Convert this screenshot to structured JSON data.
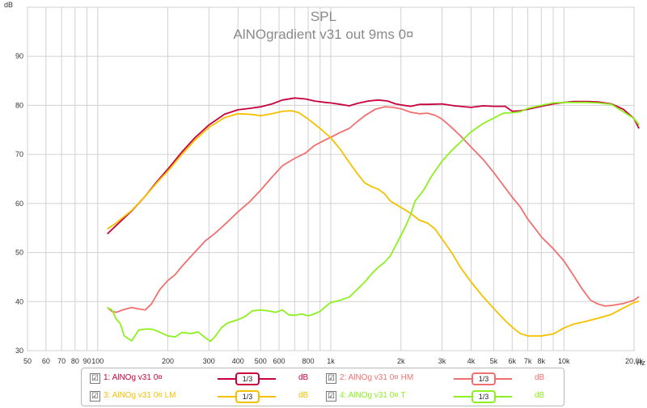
{
  "chart_data": {
    "type": "line",
    "title": "SPL",
    "subtitle": "AlNOgradient v31 out 9ms 0¤",
    "ylabel": "dB",
    "xlabel": "Hz",
    "x_scale": "log",
    "xlim": [
      50,
      20000
    ],
    "ylim": [
      30,
      100
    ],
    "grid": true,
    "y_ticks": [
      30,
      40,
      50,
      60,
      70,
      80,
      90
    ],
    "x_ticks": [
      {
        "v": 50,
        "label": "50"
      },
      {
        "v": 60,
        "label": "60"
      },
      {
        "v": 70,
        "label": "70"
      },
      {
        "v": 80,
        "label": "80"
      },
      {
        "v": 90,
        "label": "90"
      },
      {
        "v": 100,
        "label": "100"
      },
      {
        "v": 200,
        "label": "200"
      },
      {
        "v": 300,
        "label": "300"
      },
      {
        "v": 400,
        "label": "400"
      },
      {
        "v": 500,
        "label": "500"
      },
      {
        "v": 600,
        "label": "600"
      },
      {
        "v": 800,
        "label": "800"
      },
      {
        "v": 1000,
        "label": "1k"
      },
      {
        "v": 2000,
        "label": "2k"
      },
      {
        "v": 3000,
        "label": "3k"
      },
      {
        "v": 4000,
        "label": "4k"
      },
      {
        "v": 5000,
        "label": "5k"
      },
      {
        "v": 6000,
        "label": "6k"
      },
      {
        "v": 7000,
        "label": "7k"
      },
      {
        "v": 8000,
        "label": "8k"
      },
      {
        "v": 10000,
        "label": "10k"
      },
      {
        "v": 20000,
        "label": "20,0k"
      }
    ],
    "minor_x_grid": [
      700,
      900,
      9000
    ],
    "series": [
      {
        "name": "1: AlNOg v31 0¤",
        "color": "#c8003c",
        "points": [
          [
            110,
            53.8
          ],
          [
            120,
            55.5
          ],
          [
            140,
            58.5
          ],
          [
            160,
            61.5
          ],
          [
            180,
            64.5
          ],
          [
            200,
            67
          ],
          [
            230,
            70.5
          ],
          [
            260,
            73.3
          ],
          [
            300,
            76
          ],
          [
            350,
            78.2
          ],
          [
            400,
            79.1
          ],
          [
            450,
            79.4
          ],
          [
            500,
            79.7
          ],
          [
            560,
            80.3
          ],
          [
            620,
            81.1
          ],
          [
            700,
            81.5
          ],
          [
            780,
            81.3
          ],
          [
            850,
            80.9
          ],
          [
            950,
            80.6
          ],
          [
            1000,
            80.5
          ],
          [
            1100,
            80.2
          ],
          [
            1200,
            79.9
          ],
          [
            1300,
            80.4
          ],
          [
            1450,
            80.9
          ],
          [
            1600,
            81.1
          ],
          [
            1750,
            80.9
          ],
          [
            1900,
            80.3
          ],
          [
            2000,
            80.1
          ],
          [
            2200,
            79.8
          ],
          [
            2400,
            80.2
          ],
          [
            2600,
            80.2
          ],
          [
            3000,
            80.3
          ],
          [
            3400,
            79.9
          ],
          [
            4000,
            79.6
          ],
          [
            4500,
            79.9
          ],
          [
            5000,
            79.8
          ],
          [
            5600,
            79.8
          ],
          [
            6000,
            78.8
          ],
          [
            6500,
            78.9
          ],
          [
            7000,
            79.2
          ],
          [
            8000,
            79.8
          ],
          [
            9000,
            80.3
          ],
          [
            10000,
            80.6
          ],
          [
            11000,
            80.8
          ],
          [
            12500,
            80.8
          ],
          [
            14000,
            80.7
          ],
          [
            16000,
            80.3
          ],
          [
            18000,
            79.2
          ],
          [
            20000,
            77.3
          ],
          [
            21000,
            75.3
          ]
        ]
      },
      {
        "name": "2: AlNOg v31 0¤ HM",
        "color": "#f07070",
        "points": [
          [
            110,
            38.8
          ],
          [
            115,
            38
          ],
          [
            120,
            37.8
          ],
          [
            130,
            38.4
          ],
          [
            140,
            38.8
          ],
          [
            150,
            38.5
          ],
          [
            160,
            38.3
          ],
          [
            170,
            39.5
          ],
          [
            185,
            42.5
          ],
          [
            200,
            44.3
          ],
          [
            215,
            45.5
          ],
          [
            230,
            47.2
          ],
          [
            260,
            50
          ],
          [
            290,
            52.4
          ],
          [
            320,
            54
          ],
          [
            360,
            56.2
          ],
          [
            400,
            58.3
          ],
          [
            450,
            60.4
          ],
          [
            500,
            62.7
          ],
          [
            560,
            65.4
          ],
          [
            620,
            67.7
          ],
          [
            700,
            69.2
          ],
          [
            780,
            70.3
          ],
          [
            850,
            71.8
          ],
          [
            950,
            73
          ],
          [
            1000,
            73.5
          ],
          [
            1100,
            74.5
          ],
          [
            1200,
            75.3
          ],
          [
            1300,
            76.7
          ],
          [
            1400,
            77.9
          ],
          [
            1550,
            79.2
          ],
          [
            1700,
            79.7
          ],
          [
            1850,
            79.6
          ],
          [
            2000,
            79.3
          ],
          [
            2200,
            78.6
          ],
          [
            2400,
            78.3
          ],
          [
            2600,
            78.4
          ],
          [
            2800,
            78
          ],
          [
            3000,
            77.2
          ],
          [
            3300,
            75.5
          ],
          [
            3600,
            73.8
          ],
          [
            4000,
            71.5
          ],
          [
            4500,
            69
          ],
          [
            5000,
            66.3
          ],
          [
            5500,
            63.7
          ],
          [
            6000,
            61.3
          ],
          [
            6500,
            59.3
          ],
          [
            7000,
            56.8
          ],
          [
            7500,
            55
          ],
          [
            8000,
            53.2
          ],
          [
            9000,
            50.8
          ],
          [
            10000,
            48.3
          ],
          [
            11000,
            45.3
          ],
          [
            12000,
            42.5
          ],
          [
            13000,
            40.3
          ],
          [
            14000,
            39.5
          ],
          [
            15000,
            39.1
          ],
          [
            16000,
            39.2
          ],
          [
            18000,
            39.6
          ],
          [
            20000,
            40.3
          ],
          [
            21000,
            41
          ]
        ]
      },
      {
        "name": "3: AlNOg v31 0¤ LM",
        "color": "#f5c000",
        "points": [
          [
            110,
            54.8
          ],
          [
            120,
            56
          ],
          [
            140,
            58.6
          ],
          [
            160,
            61.5
          ],
          [
            180,
            64.3
          ],
          [
            200,
            66.6
          ],
          [
            230,
            70
          ],
          [
            260,
            72.8
          ],
          [
            300,
            75.5
          ],
          [
            350,
            77.5
          ],
          [
            400,
            78.3
          ],
          [
            450,
            78.2
          ],
          [
            500,
            77.9
          ],
          [
            560,
            78.3
          ],
          [
            620,
            78.8
          ],
          [
            680,
            78.9
          ],
          [
            730,
            78.5
          ],
          [
            800,
            77.2
          ],
          [
            900,
            75.3
          ],
          [
            1000,
            73.4
          ],
          [
            1100,
            71
          ],
          [
            1200,
            68.4
          ],
          [
            1300,
            66.1
          ],
          [
            1400,
            64.2
          ],
          [
            1500,
            63.4
          ],
          [
            1600,
            62.9
          ],
          [
            1700,
            62
          ],
          [
            1800,
            60.5
          ],
          [
            2000,
            59.2
          ],
          [
            2200,
            58
          ],
          [
            2400,
            56.6
          ],
          [
            2600,
            56
          ],
          [
            2800,
            54.8
          ],
          [
            3000,
            52.8
          ],
          [
            3300,
            50
          ],
          [
            3600,
            47
          ],
          [
            4000,
            44
          ],
          [
            4500,
            41
          ],
          [
            5000,
            38.6
          ],
          [
            5500,
            36.5
          ],
          [
            6000,
            34.8
          ],
          [
            6500,
            33.5
          ],
          [
            7000,
            33
          ],
          [
            8000,
            33
          ],
          [
            9000,
            33.4
          ],
          [
            10000,
            34.6
          ],
          [
            11000,
            35.4
          ],
          [
            12500,
            36
          ],
          [
            14000,
            36.6
          ],
          [
            16000,
            37.4
          ],
          [
            18000,
            38.7
          ],
          [
            20000,
            39.8
          ],
          [
            21000,
            40.1
          ]
        ]
      },
      {
        "name": "4: AlNOg v31 0¤ T",
        "color": "#8ef020",
        "points": [
          [
            110,
            38.8
          ],
          [
            115,
            38.3
          ],
          [
            120,
            36.5
          ],
          [
            125,
            35.5
          ],
          [
            130,
            33
          ],
          [
            140,
            32
          ],
          [
            150,
            34.2
          ],
          [
            160,
            34.4
          ],
          [
            170,
            34.4
          ],
          [
            180,
            34
          ],
          [
            190,
            33.5
          ],
          [
            200,
            33
          ],
          [
            215,
            32.8
          ],
          [
            230,
            33.7
          ],
          [
            250,
            33.5
          ],
          [
            270,
            33.8
          ],
          [
            290,
            32.6
          ],
          [
            305,
            31.9
          ],
          [
            320,
            33
          ],
          [
            340,
            34.7
          ],
          [
            360,
            35.6
          ],
          [
            380,
            36
          ],
          [
            400,
            36.3
          ],
          [
            430,
            37
          ],
          [
            460,
            38.1
          ],
          [
            500,
            38.3
          ],
          [
            540,
            38.1
          ],
          [
            580,
            37.8
          ],
          [
            620,
            38.3
          ],
          [
            660,
            37.3
          ],
          [
            700,
            37.2
          ],
          [
            750,
            37.5
          ],
          [
            800,
            37.1
          ],
          [
            850,
            37.5
          ],
          [
            900,
            38
          ],
          [
            950,
            39
          ],
          [
            1000,
            39.8
          ],
          [
            1100,
            40.3
          ],
          [
            1200,
            40.9
          ],
          [
            1300,
            42.5
          ],
          [
            1400,
            44
          ],
          [
            1500,
            45.7
          ],
          [
            1600,
            47
          ],
          [
            1700,
            48
          ],
          [
            1800,
            49.3
          ],
          [
            2000,
            53.5
          ],
          [
            2100,
            55.5
          ],
          [
            2200,
            57.7
          ],
          [
            2300,
            60.5
          ],
          [
            2500,
            62.7
          ],
          [
            2700,
            65.5
          ],
          [
            3000,
            68.6
          ],
          [
            3300,
            70.8
          ],
          [
            3600,
            72.5
          ],
          [
            4000,
            74.6
          ],
          [
            4500,
            76.3
          ],
          [
            5000,
            77.4
          ],
          [
            5500,
            78.4
          ],
          [
            6000,
            78.5
          ],
          [
            6500,
            78.7
          ],
          [
            7000,
            79.4
          ],
          [
            8000,
            80
          ],
          [
            9000,
            80.5
          ],
          [
            10000,
            80.6
          ],
          [
            11000,
            80.6
          ],
          [
            12500,
            80.6
          ],
          [
            14000,
            80.5
          ],
          [
            16000,
            80.2
          ],
          [
            18000,
            78.7
          ],
          [
            20000,
            77.3
          ],
          [
            21000,
            76
          ]
        ]
      }
    ]
  },
  "legend": {
    "items": [
      {
        "label": "1: AlNOg v31 0¤",
        "smoothing": "1/3",
        "unit": "dB",
        "checked": "☑",
        "color": "#c8003c"
      },
      {
        "label": "2: AlNOg v31 0¤ HM",
        "smoothing": "1/3",
        "unit": "dB",
        "checked": "☑",
        "color": "#f07070"
      },
      {
        "label": "3: AlNOg v31 0¤ LM",
        "smoothing": "1/3",
        "unit": "dB",
        "checked": "☑",
        "color": "#f5c000"
      },
      {
        "label": "4: AlNOg v31 0¤ T",
        "smoothing": "1/3",
        "unit": "dB",
        "checked": "☑",
        "color": "#8ef020"
      }
    ]
  }
}
